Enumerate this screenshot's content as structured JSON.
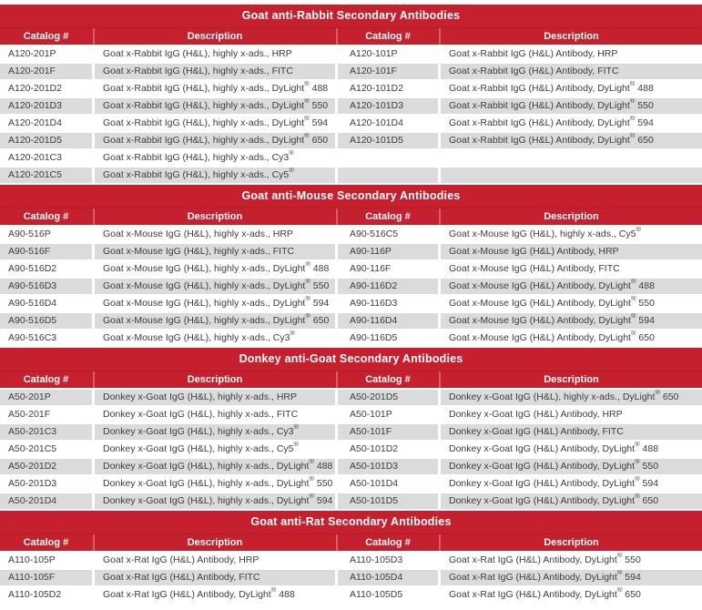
{
  "colors": {
    "header_red": "#C6202E",
    "row_stripe": "#DBDBDB",
    "body_text": "#3C3C3C",
    "header_text": "#FFFFFF"
  },
  "sections": [
    {
      "title": "Goat anti-Rabbit Secondary Antibodies",
      "headers": [
        "Catalog #",
        "Description",
        "Catalog #",
        "Description"
      ],
      "rows": [
        [
          "A120-201P",
          "Goat x-Rabbit IgG (H&L), highly x-ads., HRP",
          "A120-101P",
          "Goat x-Rabbit IgG (H&L) Antibody, HRP"
        ],
        [
          "A120-201F",
          "Goat x-Rabbit IgG (H&L), highly x-ads., FITC",
          "A120-101F",
          "Goat x-Rabbit IgG (H&L) Antibody, FITC"
        ],
        [
          "A120-201D2",
          "Goat x-Rabbit IgG (H&L), highly x-ads., DyLight® 488",
          "A120-101D2",
          "Goat x-Rabbit IgG (H&L) Antibody, DyLight® 488"
        ],
        [
          "A120-201D3",
          "Goat x-Rabbit IgG (H&L), highly x-ads., DyLight® 550",
          "A120-101D3",
          "Goat x-Rabbit IgG (H&L) Antibody, DyLight® 550"
        ],
        [
          "A120-201D4",
          "Goat x-Rabbit IgG (H&L), highly x-ads., DyLight® 594",
          "A120-101D4",
          "Goat x-Rabbit IgG (H&L) Antibody, DyLight® 594"
        ],
        [
          "A120-201D5",
          "Goat x-Rabbit IgG (H&L), highly x-ads., DyLight® 650",
          "A120-101D5",
          "Goat x-Rabbit IgG (H&L) Antibody, DyLight® 650"
        ],
        [
          "A120-201C3",
          "Goat x-Rabbit IgG (H&L), highly x-ads., Cy3®",
          "",
          ""
        ],
        [
          "A120-201C5",
          "Goat x-Rabbit IgG (H&L), highly x-ads., Cy5®",
          "",
          ""
        ]
      ]
    },
    {
      "title": "Goat anti-Mouse Secondary Antibodies",
      "headers": [
        "Catalog #",
        "Description",
        "Catalog #",
        "Description"
      ],
      "rows": [
        [
          "A90-516P",
          "Goat x-Mouse IgG (H&L), highly x-ads., HRP",
          "A90-516C5",
          "Goat x-Mouse IgG (H&L), highly x-ads., Cy5®"
        ],
        [
          "A90-516F",
          "Goat x-Mouse IgG (H&L), highly x-ads., FITC",
          "A90-116P",
          "Goat x-Mouse IgG (H&L) Antibody, HRP"
        ],
        [
          "A90-516D2",
          "Goat x-Mouse IgG (H&L), highly x-ads., DyLight® 488",
          "A90-116F",
          "Goat x-Mouse IgG (H&L) Antibody, FITC"
        ],
        [
          "A90-516D3",
          "Goat x-Mouse IgG (H&L), highly x-ads., DyLight® 550",
          "A90-116D2",
          "Goat x-Mouse IgG (H&L) Antibody, DyLight® 488"
        ],
        [
          "A90-516D4",
          "Goat x-Mouse IgG (H&L), highly x-ads., DyLight® 594",
          "A90-116D3",
          "Goat x-Mouse IgG (H&L) Antibody, DyLight® 550"
        ],
        [
          "A90-516D5",
          "Goat x-Mouse IgG (H&L), highly x-ads., DyLight® 650",
          "A90-116D4",
          "Goat x-Mouse IgG (H&L) Antibody, DyLight® 594"
        ],
        [
          "A90-516C3",
          "Goat x-Mouse IgG (H&L), highly x-ads., Cy3®",
          "A90-116D5",
          "Goat x-Mouse IgG (H&L) Antibody, DyLight® 650"
        ]
      ]
    },
    {
      "title": "Donkey anti-Goat Secondary Antibodies",
      "headers": [
        "Catalog #",
        "Description",
        "Catalog #",
        "Description"
      ],
      "rows": [
        [
          "A50-201P",
          "Donkey x-Goat IgG (H&L), highly x-ads., HRP",
          "A50-201D5",
          "Donkey x-Goat IgG (H&L), highly x-ads., DyLight® 650"
        ],
        [
          "A50-201F",
          "Donkey x-Goat IgG (H&L), highly x-ads., FITC",
          "A50-101P",
          "Donkey x-Goat IgG (H&L) Antibody, HRP"
        ],
        [
          "A50-201C3",
          "Donkey x-Goat IgG (H&L), highly x-ads., Cy3®",
          "A50-101F",
          "Donkey x-Goat IgG (H&L) Antibody, FITC"
        ],
        [
          "A50-201C5",
          "Donkey x-Goat IgG (H&L), highly x-ads., Cy5®",
          "A50-101D2",
          "Donkey x-Goat IgG (H&L) Antibody, DyLight® 488"
        ],
        [
          "A50-201D2",
          "Donkey x-Goat IgG (H&L), highly x-ads., DyLight® 488",
          "A50-101D3",
          "Donkey x-Goat IgG (H&L) Antibody, DyLight® 550"
        ],
        [
          "A50-201D3",
          "Donkey x-Goat IgG (H&L), highly x-ads., DyLight® 550",
          "A50-101D4",
          "Donkey x-Goat IgG (H&L) Antibody, DyLight® 594"
        ],
        [
          "A50-201D4",
          "Donkey x-Goat IgG (H&L), highly x-ads., DyLight® 594",
          "A50-101D5",
          "Donkey x-Goat IgG (H&L) Antibody, DyLight® 650"
        ]
      ]
    },
    {
      "title": "Goat anti-Rat Secondary Antibodies",
      "headers": [
        "Catalog #",
        "Description",
        "Catalog #",
        "Description"
      ],
      "rows": [
        [
          "A110-105P",
          "Goat x-Rat IgG (H&L) Antibody, HRP",
          "A110-105D3",
          "Goat x-Rat IgG (H&L) Antibody, DyLight® 550"
        ],
        [
          "A110-105F",
          "Goat x-Rat IgG (H&L) Antibody, FITC",
          "A110-105D4",
          "Goat x-Rat IgG (H&L) Antibody, DyLight® 594"
        ],
        [
          "A110-105D2",
          "Goat x-Rat IgG (H&L) Antibody, DyLight® 488",
          "A110-105D5",
          "Goat x-Rat IgG (H&L) Antibody, DyLight® 650"
        ]
      ]
    }
  ]
}
